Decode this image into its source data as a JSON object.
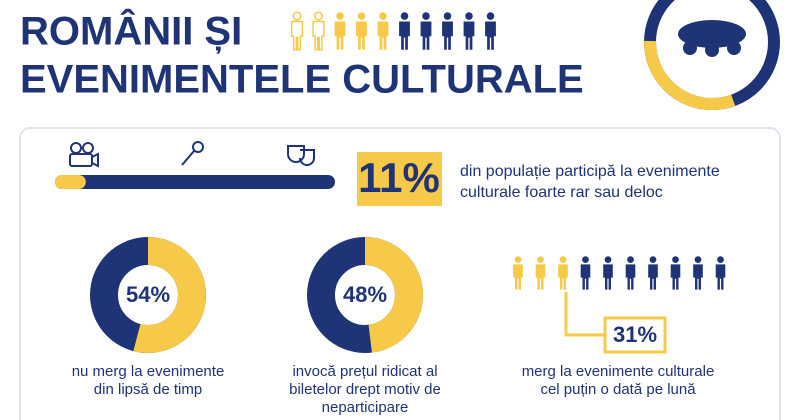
{
  "header": {
    "title_lines": [
      "ROMÂNII ȘI",
      "EVENIMENTELE CULTURALE"
    ]
  },
  "headline_stat": {
    "value": 11,
    "value_label": "11%",
    "text_lines": [
      "din populație participă la evenimente",
      "culturale foarte rar sau deloc"
    ]
  },
  "stats": [
    {
      "value": 54,
      "value_label": "54%",
      "text_lines": [
        "nu merg la evenimente",
        "din lipsă de timp"
      ]
    },
    {
      "value": 48,
      "value_label": "48%",
      "text_lines": [
        "invocă prețul ridicat al",
        "biletelor drept motiv de",
        "neparticipare"
      ]
    },
    {
      "value_label": "31%",
      "text_lines": [
        "merg la evenimente culturale",
        "cel puțin o dată pe lună"
      ]
    }
  ]
}
